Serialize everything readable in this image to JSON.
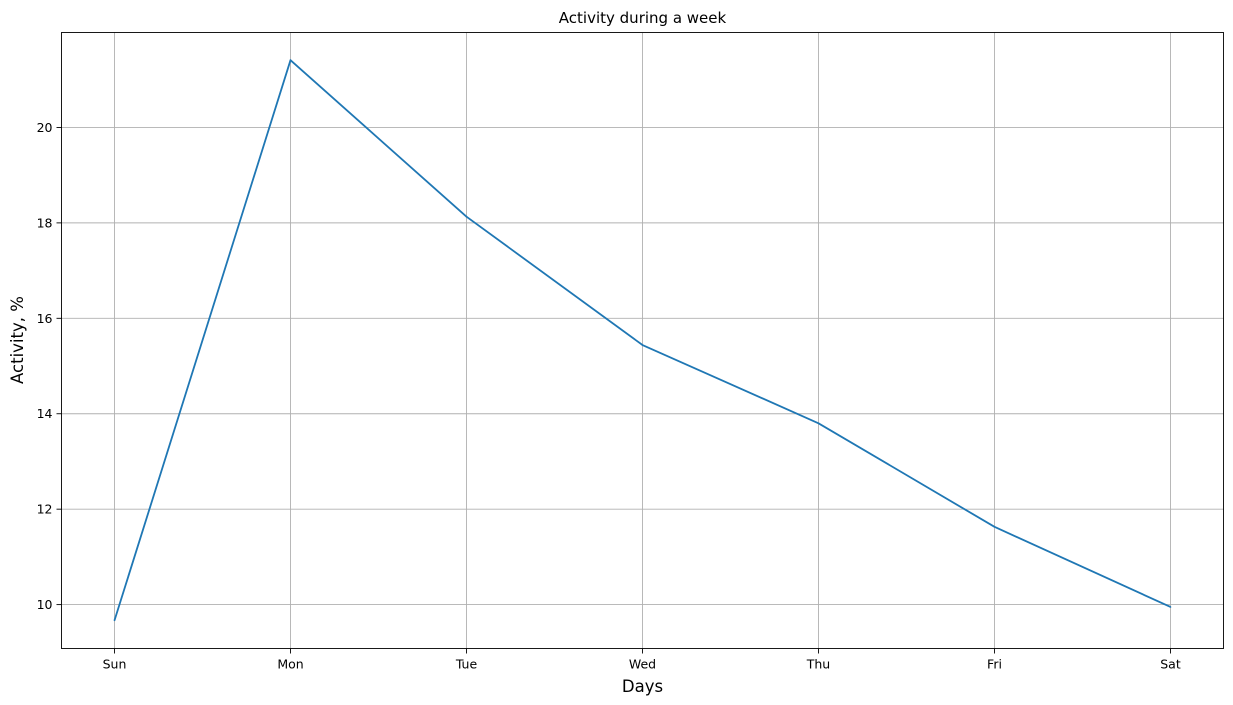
{
  "chart_data": {
    "type": "line",
    "title": "Activity during a week",
    "xlabel": "Days",
    "ylabel": "Activity, %",
    "categories": [
      "Sun",
      "Mon",
      "Tue",
      "Wed",
      "Thu",
      "Fri",
      "Sat"
    ],
    "series": [
      {
        "values": [
          9.67,
          21.41,
          18.13,
          15.44,
          13.8,
          11.63,
          9.95
        ],
        "color": "#1f77b4"
      }
    ],
    "yticks": [
      10,
      12,
      14,
      16,
      18,
      20
    ],
    "ylim": [
      9.08,
      21.99
    ],
    "grid": true,
    "legend": "none"
  }
}
